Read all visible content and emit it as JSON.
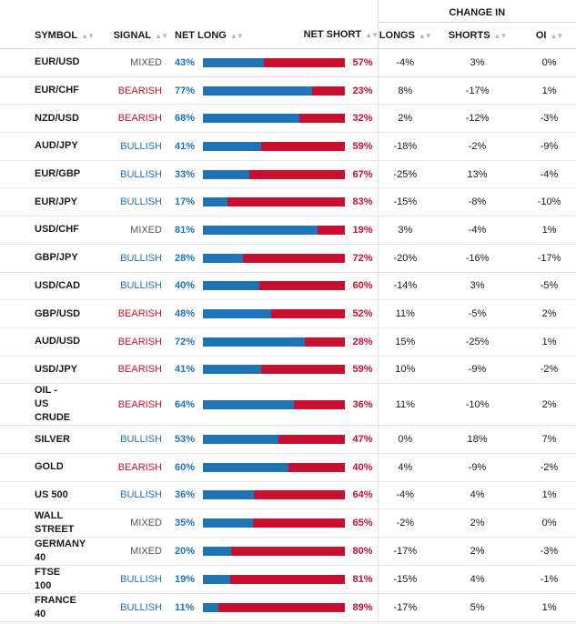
{
  "header": {
    "change_in": "CHANGE IN",
    "symbol": "SYMBOL",
    "signal": "SIGNAL",
    "net_long": "NET LONG",
    "net_short": "NET SHORT",
    "longs": "LONGS",
    "shorts": "SHORTS",
    "oi": "OI"
  },
  "colors": {
    "long": "#1f74b8",
    "short": "#c8102e",
    "mixed": "#555555"
  },
  "rows": [
    {
      "symbol": "EUR/USD",
      "signal": "MIXED",
      "net_long": "43%",
      "long_value": 43,
      "net_short": "57%",
      "longs": "-4%",
      "shorts": "3%",
      "oi": "0%"
    },
    {
      "symbol": "EUR/CHF",
      "signal": "BEARISH",
      "net_long": "77%",
      "long_value": 77,
      "net_short": "23%",
      "longs": "8%",
      "shorts": "-17%",
      "oi": "1%"
    },
    {
      "symbol": "NZD/USD",
      "signal": "BEARISH",
      "net_long": "68%",
      "long_value": 68,
      "net_short": "32%",
      "longs": "2%",
      "shorts": "-12%",
      "oi": "-3%"
    },
    {
      "symbol": "AUD/JPY",
      "signal": "BULLISH",
      "net_long": "41%",
      "long_value": 41,
      "net_short": "59%",
      "longs": "-18%",
      "shorts": "-2%",
      "oi": "-9%"
    },
    {
      "symbol": "EUR/GBP",
      "signal": "BULLISH",
      "net_long": "33%",
      "long_value": 33,
      "net_short": "67%",
      "longs": "-25%",
      "shorts": "13%",
      "oi": "-4%"
    },
    {
      "symbol": "EUR/JPY",
      "signal": "BULLISH",
      "net_long": "17%",
      "long_value": 17,
      "net_short": "83%",
      "longs": "-15%",
      "shorts": "-8%",
      "oi": "-10%"
    },
    {
      "symbol": "USD/CHF",
      "signal": "MIXED",
      "net_long": "81%",
      "long_value": 81,
      "net_short": "19%",
      "longs": "3%",
      "shorts": "-4%",
      "oi": "1%"
    },
    {
      "symbol": "GBP/JPY",
      "signal": "BULLISH",
      "net_long": "28%",
      "long_value": 28,
      "net_short": "72%",
      "longs": "-20%",
      "shorts": "-16%",
      "oi": "-17%"
    },
    {
      "symbol": "USD/CAD",
      "signal": "BULLISH",
      "net_long": "40%",
      "long_value": 40,
      "net_short": "60%",
      "longs": "-14%",
      "shorts": "3%",
      "oi": "-5%"
    },
    {
      "symbol": "GBP/USD",
      "signal": "BEARISH",
      "net_long": "48%",
      "long_value": 48,
      "net_short": "52%",
      "longs": "11%",
      "shorts": "-5%",
      "oi": "2%"
    },
    {
      "symbol": "AUD/USD",
      "signal": "BEARISH",
      "net_long": "72%",
      "long_value": 72,
      "net_short": "28%",
      "longs": "15%",
      "shorts": "-25%",
      "oi": "1%"
    },
    {
      "symbol": "USD/JPY",
      "signal": "BEARISH",
      "net_long": "41%",
      "long_value": 41,
      "net_short": "59%",
      "longs": "10%",
      "shorts": "-9%",
      "oi": "-2%"
    },
    {
      "symbol": "OIL - US CRUDE",
      "signal": "BEARISH",
      "net_long": "64%",
      "long_value": 64,
      "net_short": "36%",
      "longs": "11%",
      "shorts": "-10%",
      "oi": "2%"
    },
    {
      "symbol": "SILVER",
      "signal": "BULLISH",
      "net_long": "53%",
      "long_value": 53,
      "net_short": "47%",
      "longs": "0%",
      "shorts": "18%",
      "oi": "7%"
    },
    {
      "symbol": "GOLD",
      "signal": "BEARISH",
      "net_long": "60%",
      "long_value": 60,
      "net_short": "40%",
      "longs": "4%",
      "shorts": "-9%",
      "oi": "-2%"
    },
    {
      "symbol": "US 500",
      "signal": "BULLISH",
      "net_long": "36%",
      "long_value": 36,
      "net_short": "64%",
      "longs": "-4%",
      "shorts": "4%",
      "oi": "1%"
    },
    {
      "symbol": "WALL STREET",
      "signal": "MIXED",
      "net_long": "35%",
      "long_value": 35,
      "net_short": "65%",
      "longs": "-2%",
      "shorts": "2%",
      "oi": "0%"
    },
    {
      "symbol": "GERMANY 40",
      "signal": "MIXED",
      "net_long": "20%",
      "long_value": 20,
      "net_short": "80%",
      "longs": "-17%",
      "shorts": "2%",
      "oi": "-3%"
    },
    {
      "symbol": "FTSE 100",
      "signal": "BULLISH",
      "net_long": "19%",
      "long_value": 19,
      "net_short": "81%",
      "longs": "-15%",
      "shorts": "4%",
      "oi": "-1%"
    },
    {
      "symbol": "FRANCE 40",
      "signal": "BULLISH",
      "net_long": "11%",
      "long_value": 11,
      "net_short": "89%",
      "longs": "-17%",
      "shorts": "5%",
      "oi": "1%"
    }
  ]
}
